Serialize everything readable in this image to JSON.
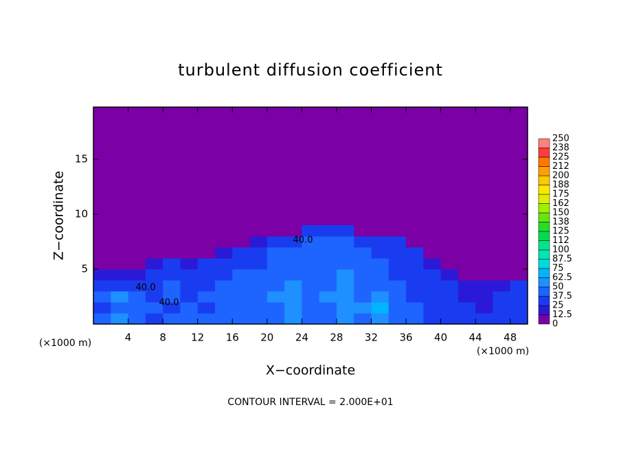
{
  "chart_data": {
    "type": "contour",
    "title": "turbulent diffusion coefficient",
    "xlabel": "X−coordinate",
    "ylabel": "Z−coordinate",
    "x_unit": "(×1000 m)",
    "y_unit": "(×1000 m)",
    "note": "CONTOUR INTERVAL = 2.000E+01",
    "xlim": [
      0,
      50
    ],
    "ylim": [
      0,
      19.75
    ],
    "xticks": [
      4,
      8,
      12,
      16,
      20,
      24,
      28,
      32,
      36,
      40,
      44,
      48
    ],
    "yticks": [
      5,
      10,
      15
    ],
    "x_edges": [
      0,
      2,
      4,
      6,
      8,
      10,
      12,
      14,
      16,
      18,
      20,
      22,
      24,
      26,
      28,
      30,
      32,
      34,
      36,
      38,
      40,
      42,
      44,
      46,
      48,
      50
    ],
    "z_edges": [
      0,
      1,
      2,
      3,
      4,
      5,
      6,
      7,
      8,
      9
    ],
    "z": [
      [
        40,
        50,
        40,
        35,
        40,
        40,
        40,
        45,
        40,
        40,
        45,
        50,
        45,
        40,
        50,
        45,
        60,
        40,
        40,
        35,
        30,
        25,
        25,
        25,
        25
      ],
      [
        35,
        40,
        45,
        40,
        35,
        40,
        35,
        40,
        40,
        45,
        45,
        50,
        40,
        45,
        55,
        50,
        65,
        45,
        40,
        30,
        25,
        25,
        20,
        25,
        25
      ],
      [
        45,
        50,
        40,
        35,
        40,
        35,
        40,
        40,
        45,
        40,
        50,
        55,
        45,
        50,
        55,
        45,
        55,
        40,
        35,
        30,
        25,
        20,
        20,
        25,
        30
      ],
      [
        35,
        30,
        30,
        35,
        40,
        35,
        35,
        40,
        40,
        45,
        40,
        50,
        40,
        45,
        50,
        45,
        40,
        40,
        35,
        30,
        25,
        20,
        15,
        20,
        25
      ],
      [
        15,
        15,
        20,
        25,
        30,
        30,
        35,
        35,
        40,
        40,
        45,
        45,
        40,
        45,
        50,
        40,
        40,
        35,
        35,
        25,
        15,
        10,
        10,
        10,
        10
      ],
      [
        10,
        10,
        10,
        15,
        25,
        20,
        25,
        30,
        35,
        35,
        40,
        45,
        45,
        40,
        45,
        40,
        40,
        35,
        30,
        15,
        10,
        5,
        5,
        5,
        5
      ],
      [
        5,
        5,
        5,
        5,
        5,
        5,
        5,
        20,
        30,
        30,
        40,
        45,
        40,
        45,
        45,
        40,
        35,
        35,
        25,
        5,
        0,
        0,
        0,
        0,
        0
      ],
      [
        0,
        0,
        0,
        0,
        0,
        0,
        0,
        0,
        0,
        20,
        30,
        35,
        40,
        45,
        40,
        35,
        30,
        25,
        0,
        0,
        0,
        0,
        0,
        0,
        0
      ],
      [
        0,
        0,
        0,
        0,
        0,
        0,
        0,
        0,
        0,
        0,
        0,
        0,
        25,
        30,
        25,
        0,
        0,
        0,
        0,
        0,
        0,
        0,
        0,
        0,
        0
      ]
    ],
    "levels": [
      0,
      12.5,
      25,
      37.5,
      50,
      62.5,
      75,
      87.5,
      100,
      {
        "value": 112.5,
        "label": "112"
      },
      125,
      {
        "value": 137.5,
        "label": "138"
      },
      150,
      {
        "value": 162.5,
        "label": "162"
      },
      175,
      {
        "value": 187.5,
        "label": "188"
      },
      200,
      {
        "value": 212.5,
        "label": "212"
      },
      225,
      {
        "value": 237.5,
        "label": "238"
      },
      250
    ],
    "colors": [
      "#7b00a5",
      "#2a1ad8",
      "#1a3cf0",
      "#1e64ff",
      "#1e90ff",
      "#00b4ff",
      "#00dcdc",
      "#00e6b4",
      "#00e68c",
      "#00dc50",
      "#28dc28",
      "#64e614",
      "#a0f000",
      "#dcf000",
      "#ffe600",
      "#ffc800",
      "#ffa000",
      "#ff7800",
      "#ff3c3c",
      "#ff8080"
    ],
    "contour_labels": [
      "40.0",
      "40.0",
      "40.0"
    ]
  }
}
